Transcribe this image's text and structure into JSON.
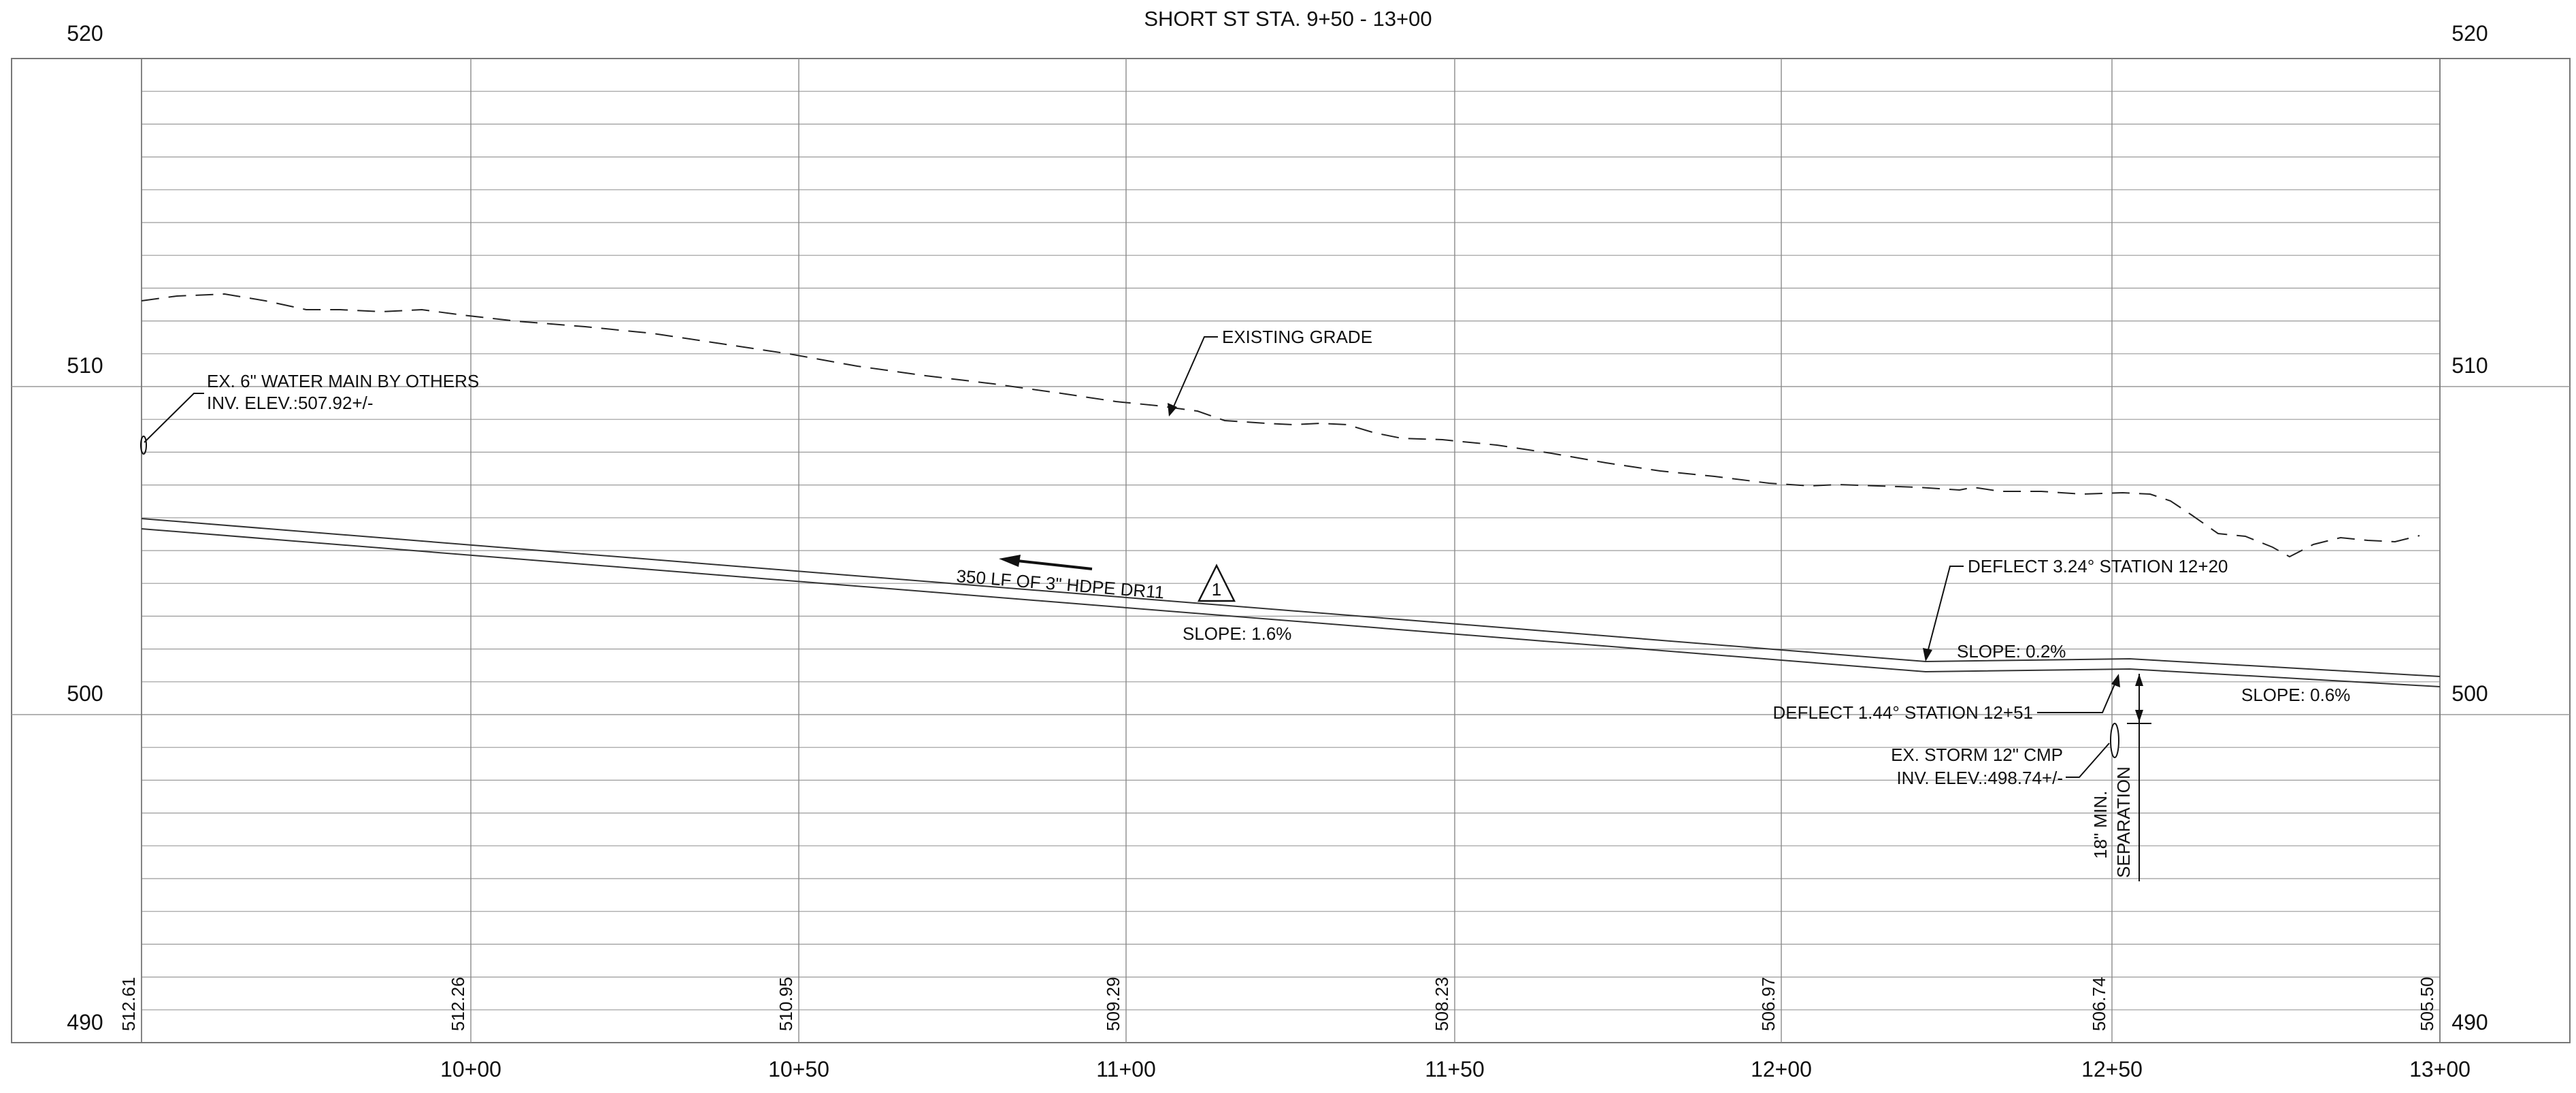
{
  "title": "SHORT ST STA. 9+50 - 13+00",
  "elevation_labels_left": [
    "520",
    "510",
    "500",
    "490"
  ],
  "elevation_labels_right": [
    "520",
    "510",
    "500",
    "490"
  ],
  "station_labels": [
    "10+00",
    "10+50",
    "11+00",
    "11+50",
    "12+00",
    "12+50",
    "13+00"
  ],
  "grade_labels": [
    "512.61",
    "512.26",
    "510.95",
    "509.29",
    "508.23",
    "506.97",
    "506.74",
    "505.50"
  ],
  "annotations": {
    "water_main": "EX. 6\" WATER MAIN BY OTHERS",
    "water_main_inv": "INV. ELEV.:507.92+/-",
    "existing_grade": "EXISTING GRADE",
    "pipe_desc": "350 LF OF 3\" HDPE DR11",
    "keynote": "1",
    "slope_main": "SLOPE: 1.6%",
    "deflect_1": "DEFLECT 3.24° STATION 12+20",
    "slope_mid": "SLOPE: 0.2%",
    "deflect_2": "DEFLECT 1.44° STATION 12+51",
    "slope_end": "SLOPE: 0.6%",
    "storm": "EX. STORM 12\" CMP",
    "storm_inv": "INV. ELEV.:498.74+/-",
    "separation_1": "18\" MIN.",
    "separation_2": "SEPARATION"
  },
  "profile_data": {
    "existing_grade": [
      {
        "station": "9+50",
        "elevation": 512.61
      },
      {
        "station": "10+00",
        "elevation": 512.26
      },
      {
        "station": "10+50",
        "elevation": 510.95
      },
      {
        "station": "11+00",
        "elevation": 509.29
      },
      {
        "station": "11+50",
        "elevation": 508.23
      },
      {
        "station": "12+00",
        "elevation": 506.97
      },
      {
        "station": "12+50",
        "elevation": 506.74
      },
      {
        "station": "13+00",
        "elevation": 505.5
      }
    ],
    "elevation_range": [
      490,
      520
    ]
  }
}
